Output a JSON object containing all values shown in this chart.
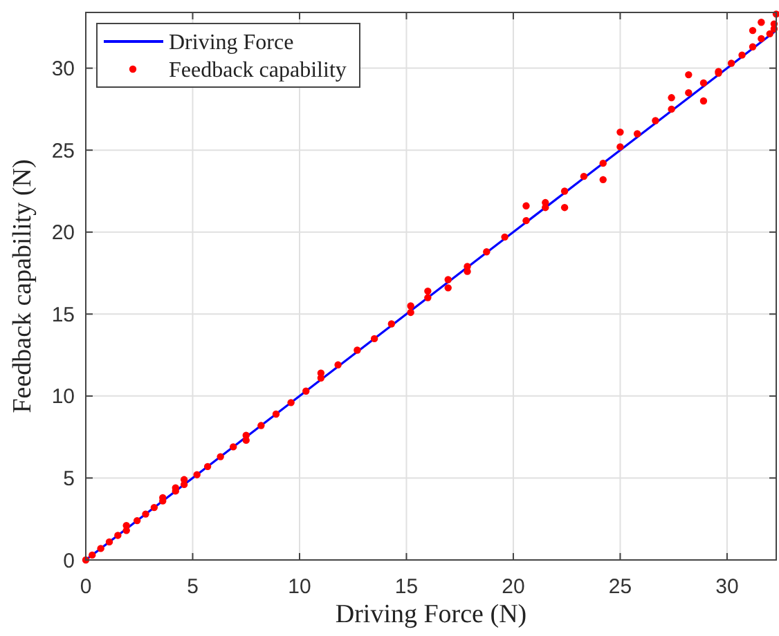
{
  "chart_data": {
    "type": "scatter",
    "xlabel": "Driving Force (N)",
    "ylabel": "Feedback capability (N)",
    "xlim": [
      0,
      32.3
    ],
    "ylim": [
      0,
      33.4
    ],
    "xticks": [
      0,
      5,
      10,
      15,
      20,
      25,
      30
    ],
    "yticks": [
      0,
      5,
      10,
      15,
      20,
      25,
      30
    ],
    "grid": true,
    "legend": "top left",
    "series": [
      {
        "name": "Driving Force",
        "type": "line",
        "color": "#0000ff",
        "marker": "none",
        "line_style": "solid",
        "x": [
          0,
          32.3
        ],
        "values": [
          0,
          32.3
        ]
      },
      {
        "name": "Feedback capability",
        "color": "#ff0000",
        "marker": "circle",
        "x": [
          0,
          0.3,
          0.7,
          1.1,
          1.5,
          1.9,
          1.9,
          2.4,
          2.8,
          3.2,
          3.6,
          3.6,
          4.2,
          4.2,
          4.6,
          4.6,
          5.2,
          5.7,
          6.3,
          6.9,
          7.5,
          7.5,
          8.2,
          8.9,
          9.6,
          10.3,
          11.0,
          11.0,
          11.8,
          12.7,
          13.5,
          14.3,
          15.2,
          15.2,
          16.0,
          16.0,
          16.95,
          16.95,
          17.85,
          17.85,
          18.75,
          19.6,
          20.6,
          20.6,
          21.5,
          21.5,
          22.4,
          22.4,
          23.3,
          24.2,
          24.2,
          25.0,
          25.0,
          25.8,
          26.65,
          27.4,
          27.4,
          28.2,
          28.2,
          28.9,
          28.9,
          29.6,
          29.6,
          30.2,
          30.7,
          31.2,
          31.2,
          31.6,
          31.6,
          32.0,
          32.2,
          32.2,
          32.3
        ],
        "values": [
          0,
          0.3,
          0.7,
          1.1,
          1.5,
          1.8,
          2.1,
          2.4,
          2.8,
          3.2,
          3.6,
          3.8,
          4.2,
          4.4,
          4.6,
          4.9,
          5.2,
          5.7,
          6.3,
          6.9,
          7.3,
          7.6,
          8.2,
          8.9,
          9.6,
          10.3,
          11.1,
          11.4,
          11.9,
          12.8,
          13.5,
          14.4,
          15.1,
          15.5,
          16.0,
          16.4,
          16.6,
          17.1,
          17.6,
          17.9,
          18.8,
          19.7,
          20.7,
          21.6,
          21.5,
          21.8,
          22.5,
          21.5,
          23.4,
          24.2,
          23.2,
          25.2,
          26.1,
          26.0,
          26.8,
          27.5,
          28.2,
          28.5,
          29.6,
          29.1,
          28.0,
          29.7,
          29.8,
          30.3,
          30.8,
          31.3,
          32.3,
          31.8,
          32.8,
          32.1,
          32.4,
          32.7,
          33.3
        ]
      }
    ]
  }
}
